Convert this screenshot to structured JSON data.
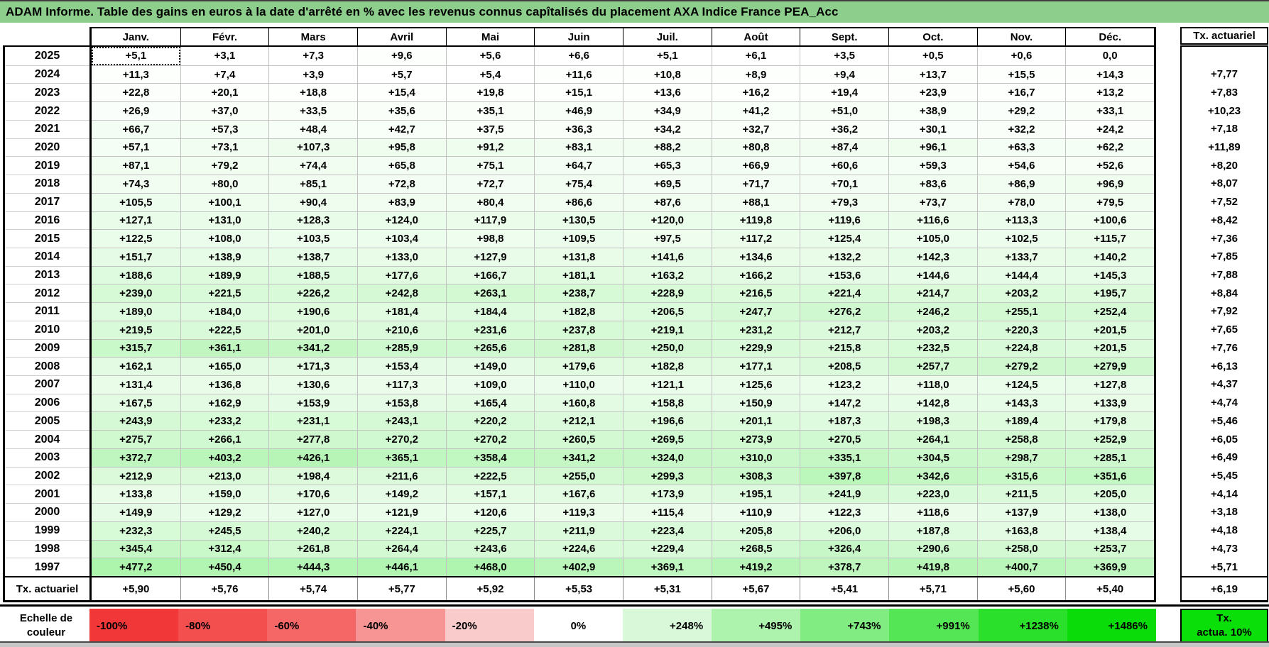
{
  "title": "ADAM Informe. Table des gains en euros à la date d'arrêté en % avec les revenus connus capîtalisés du placement AXA Indice France PEA_Acc",
  "columns": [
    "Janv.",
    "Févr.",
    "Mars",
    "Avril",
    "Mai",
    "Juin",
    "Juil.",
    "Août",
    "Sept.",
    "Oct.",
    "Nov.",
    "Déc."
  ],
  "right_column": {
    "header": "Tx. actuariel"
  },
  "rows": [
    {
      "year": "2025",
      "values": [
        "+5,1",
        "+3,1",
        "+7,3",
        "+9,6",
        "+5,6",
        "+6,6",
        "+5,1",
        "+6,1",
        "+3,5",
        "+0,5",
        "+0,6",
        "0,0"
      ],
      "tx": ""
    },
    {
      "year": "2024",
      "values": [
        "+11,3",
        "+7,4",
        "+3,9",
        "+5,7",
        "+5,4",
        "+11,6",
        "+10,8",
        "+8,9",
        "+9,4",
        "+13,7",
        "+15,5",
        "+14,3"
      ],
      "tx": "+7,77"
    },
    {
      "year": "2023",
      "values": [
        "+22,8",
        "+20,1",
        "+18,8",
        "+15,4",
        "+19,8",
        "+15,1",
        "+13,6",
        "+16,2",
        "+19,4",
        "+23,9",
        "+16,7",
        "+13,2"
      ],
      "tx": "+7,83"
    },
    {
      "year": "2022",
      "values": [
        "+26,9",
        "+37,0",
        "+33,5",
        "+35,6",
        "+35,1",
        "+46,9",
        "+34,9",
        "+41,2",
        "+51,0",
        "+38,9",
        "+29,2",
        "+33,1"
      ],
      "tx": "+10,23"
    },
    {
      "year": "2021",
      "values": [
        "+66,7",
        "+57,3",
        "+48,4",
        "+42,7",
        "+37,5",
        "+36,3",
        "+34,2",
        "+32,7",
        "+36,2",
        "+30,1",
        "+32,2",
        "+24,2"
      ],
      "tx": "+7,18"
    },
    {
      "year": "2020",
      "values": [
        "+57,1",
        "+73,1",
        "+107,3",
        "+95,8",
        "+91,2",
        "+83,1",
        "+88,2",
        "+80,8",
        "+87,4",
        "+96,1",
        "+63,3",
        "+62,2"
      ],
      "tx": "+11,89"
    },
    {
      "year": "2019",
      "values": [
        "+87,1",
        "+79,2",
        "+74,4",
        "+65,8",
        "+75,1",
        "+64,7",
        "+65,3",
        "+66,9",
        "+60,6",
        "+59,3",
        "+54,6",
        "+52,6"
      ],
      "tx": "+8,20"
    },
    {
      "year": "2018",
      "values": [
        "+74,3",
        "+80,0",
        "+85,1",
        "+72,8",
        "+72,7",
        "+75,4",
        "+69,5",
        "+71,7",
        "+70,1",
        "+83,6",
        "+86,9",
        "+96,9"
      ],
      "tx": "+8,07"
    },
    {
      "year": "2017",
      "values": [
        "+105,5",
        "+100,1",
        "+90,4",
        "+83,9",
        "+80,4",
        "+86,6",
        "+87,6",
        "+88,1",
        "+79,3",
        "+73,7",
        "+78,0",
        "+79,5"
      ],
      "tx": "+7,52"
    },
    {
      "year": "2016",
      "values": [
        "+127,1",
        "+131,0",
        "+128,3",
        "+124,0",
        "+117,9",
        "+130,5",
        "+120,0",
        "+119,8",
        "+119,6",
        "+116,6",
        "+113,3",
        "+100,6"
      ],
      "tx": "+8,42"
    },
    {
      "year": "2015",
      "values": [
        "+122,5",
        "+108,0",
        "+103,5",
        "+103,4",
        "+98,8",
        "+109,5",
        "+97,5",
        "+117,2",
        "+125,4",
        "+105,0",
        "+102,5",
        "+115,7"
      ],
      "tx": "+7,36"
    },
    {
      "year": "2014",
      "values": [
        "+151,7",
        "+138,9",
        "+138,7",
        "+133,0",
        "+127,9",
        "+131,8",
        "+141,6",
        "+134,6",
        "+132,2",
        "+142,3",
        "+133,7",
        "+140,2"
      ],
      "tx": "+7,85"
    },
    {
      "year": "2013",
      "values": [
        "+188,6",
        "+189,9",
        "+188,5",
        "+177,6",
        "+166,7",
        "+181,1",
        "+163,2",
        "+166,2",
        "+153,6",
        "+144,6",
        "+144,4",
        "+145,3"
      ],
      "tx": "+7,88"
    },
    {
      "year": "2012",
      "values": [
        "+239,0",
        "+221,5",
        "+226,2",
        "+242,8",
        "+263,1",
        "+238,7",
        "+228,9",
        "+216,5",
        "+221,4",
        "+214,7",
        "+203,2",
        "+195,7"
      ],
      "tx": "+8,84"
    },
    {
      "year": "2011",
      "values": [
        "+189,0",
        "+184,0",
        "+190,6",
        "+181,4",
        "+184,4",
        "+182,8",
        "+206,5",
        "+247,7",
        "+276,2",
        "+246,2",
        "+255,1",
        "+252,4"
      ],
      "tx": "+7,92"
    },
    {
      "year": "2010",
      "values": [
        "+219,5",
        "+222,5",
        "+201,0",
        "+210,6",
        "+231,6",
        "+237,8",
        "+219,1",
        "+231,2",
        "+212,7",
        "+203,2",
        "+220,3",
        "+201,5"
      ],
      "tx": "+7,65"
    },
    {
      "year": "2009",
      "values": [
        "+315,7",
        "+361,1",
        "+341,2",
        "+285,9",
        "+265,6",
        "+281,8",
        "+250,0",
        "+229,9",
        "+215,8",
        "+232,5",
        "+224,8",
        "+201,5"
      ],
      "tx": "+7,76"
    },
    {
      "year": "2008",
      "values": [
        "+162,1",
        "+165,0",
        "+171,3",
        "+153,4",
        "+149,0",
        "+179,6",
        "+182,8",
        "+177,1",
        "+208,5",
        "+257,7",
        "+279,2",
        "+279,9"
      ],
      "tx": "+6,13"
    },
    {
      "year": "2007",
      "values": [
        "+131,4",
        "+136,8",
        "+130,6",
        "+117,3",
        "+109,0",
        "+110,0",
        "+121,1",
        "+125,6",
        "+123,2",
        "+118,0",
        "+124,5",
        "+127,8"
      ],
      "tx": "+4,37"
    },
    {
      "year": "2006",
      "values": [
        "+167,5",
        "+162,9",
        "+153,9",
        "+153,8",
        "+165,4",
        "+160,8",
        "+158,8",
        "+150,9",
        "+147,2",
        "+142,8",
        "+143,3",
        "+133,9"
      ],
      "tx": "+4,74"
    },
    {
      "year": "2005",
      "values": [
        "+243,9",
        "+233,2",
        "+231,1",
        "+243,1",
        "+220,2",
        "+212,1",
        "+196,6",
        "+201,1",
        "+187,3",
        "+198,3",
        "+189,4",
        "+179,8"
      ],
      "tx": "+5,46"
    },
    {
      "year": "2004",
      "values": [
        "+275,7",
        "+266,1",
        "+277,8",
        "+270,2",
        "+270,2",
        "+260,5",
        "+269,5",
        "+273,9",
        "+270,5",
        "+264,1",
        "+258,8",
        "+252,9"
      ],
      "tx": "+6,05"
    },
    {
      "year": "2003",
      "values": [
        "+372,7",
        "+403,2",
        "+426,1",
        "+365,1",
        "+358,4",
        "+341,2",
        "+324,0",
        "+310,0",
        "+335,1",
        "+304,5",
        "+298,7",
        "+285,1"
      ],
      "tx": "+6,49"
    },
    {
      "year": "2002",
      "values": [
        "+212,9",
        "+213,0",
        "+198,4",
        "+211,6",
        "+222,5",
        "+255,0",
        "+299,3",
        "+308,3",
        "+397,8",
        "+342,6",
        "+315,6",
        "+351,6"
      ],
      "tx": "+5,45"
    },
    {
      "year": "2001",
      "values": [
        "+133,8",
        "+159,0",
        "+170,6",
        "+149,2",
        "+157,1",
        "+167,6",
        "+173,9",
        "+195,1",
        "+241,9",
        "+223,0",
        "+211,5",
        "+205,0"
      ],
      "tx": "+4,14"
    },
    {
      "year": "2000",
      "values": [
        "+149,9",
        "+129,2",
        "+127,0",
        "+121,9",
        "+120,6",
        "+119,3",
        "+115,4",
        "+110,9",
        "+122,3",
        "+118,6",
        "+137,9",
        "+138,0"
      ],
      "tx": "+3,18"
    },
    {
      "year": "1999",
      "values": [
        "+232,3",
        "+245,5",
        "+240,2",
        "+224,1",
        "+225,7",
        "+211,9",
        "+223,4",
        "+205,8",
        "+206,0",
        "+187,8",
        "+163,8",
        "+138,4"
      ],
      "tx": "+4,18"
    },
    {
      "year": "1998",
      "values": [
        "+345,4",
        "+312,4",
        "+261,8",
        "+264,4",
        "+243,6",
        "+224,6",
        "+229,4",
        "+268,5",
        "+326,4",
        "+290,6",
        "+258,0",
        "+253,7"
      ],
      "tx": "+4,73"
    },
    {
      "year": "1997",
      "values": [
        "+477,2",
        "+450,4",
        "+444,3",
        "+446,1",
        "+468,0",
        "+402,9",
        "+369,1",
        "+419,2",
        "+378,7",
        "+419,8",
        "+400,7",
        "+369,9"
      ],
      "tx": "+5,71"
    }
  ],
  "footer_row": {
    "label": "Tx. actuariel",
    "values": [
      "+5,90",
      "+5,76",
      "+5,74",
      "+5,77",
      "+5,92",
      "+5,53",
      "+5,31",
      "+5,67",
      "+5,41",
      "+5,71",
      "+5,60",
      "+5,40"
    ],
    "tx": "+6,19"
  },
  "scale": {
    "label_line1": "Echelle de",
    "label_line2": "couleur",
    "cells": [
      {
        "label": "-100%",
        "color": "#F13737",
        "align": "left"
      },
      {
        "label": "-80%",
        "color": "#F34F4F",
        "align": "left"
      },
      {
        "label": "-60%",
        "color": "#F56767",
        "align": "left"
      },
      {
        "label": "-40%",
        "color": "#F79595",
        "align": "left"
      },
      {
        "label": "-20%",
        "color": "#FACBCB",
        "align": "left"
      },
      {
        "label": "0%",
        "color": "#FFFFFF",
        "align": "center"
      },
      {
        "label": "+248%",
        "color": "#D9F8D9",
        "align": "right"
      },
      {
        "label": "+495%",
        "color": "#ADF3AD",
        "align": "right"
      },
      {
        "label": "+743%",
        "color": "#81EC81",
        "align": "right"
      },
      {
        "label": "+991%",
        "color": "#55E655",
        "align": "right"
      },
      {
        "label": "+1238%",
        "color": "#2BE02B",
        "align": "right"
      },
      {
        "label": "+1486%",
        "color": "#0ADC0A",
        "align": "right"
      }
    ],
    "tx_box": {
      "line1": "Tx.",
      "line2": "actua. 10%",
      "color": "#0ADF0A"
    }
  },
  "selection": {
    "year": "2025",
    "month": "Janv."
  },
  "colors": {
    "title_bg": "#8DCE8D",
    "positive_max": "#00DC00",
    "negative_max": "#F13737",
    "grid_line": "#C2C2C2"
  }
}
